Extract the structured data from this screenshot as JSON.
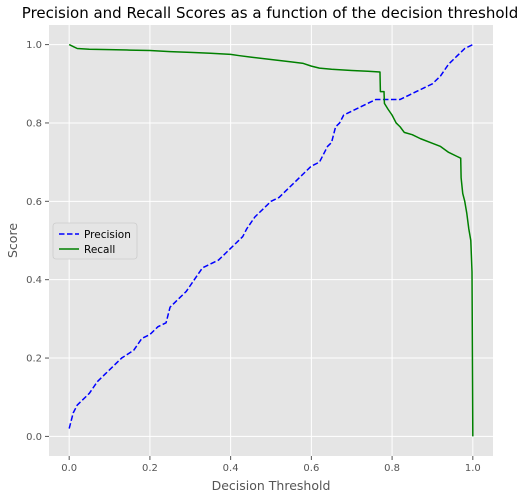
{
  "chart_data": {
    "type": "line",
    "title": "Precision and Recall Scores as a function of the decision threshold",
    "xlabel": "Decision Threshold",
    "ylabel": "Score",
    "xlim": [
      -0.05,
      1.05
    ],
    "ylim": [
      -0.05,
      1.05
    ],
    "xticks": [
      0.0,
      0.2,
      0.4,
      0.6,
      0.8,
      1.0
    ],
    "yticks": [
      0.0,
      0.2,
      0.4,
      0.6,
      0.8,
      1.0
    ],
    "xtick_labels": [
      "0.0",
      "0.2",
      "0.4",
      "0.6",
      "0.8",
      "1.0"
    ],
    "ytick_labels": [
      "0.0",
      "0.2",
      "0.4",
      "0.6",
      "0.8",
      "1.0"
    ],
    "grid": true,
    "legend_position": "center-left",
    "series": [
      {
        "name": "Precision",
        "color": "#0000ff",
        "dash": "dashed",
        "x": [
          0.0,
          0.01,
          0.02,
          0.03,
          0.05,
          0.07,
          0.09,
          0.11,
          0.13,
          0.16,
          0.18,
          0.2,
          0.22,
          0.24,
          0.25,
          0.27,
          0.29,
          0.31,
          0.33,
          0.35,
          0.37,
          0.39,
          0.41,
          0.43,
          0.44,
          0.46,
          0.48,
          0.5,
          0.52,
          0.54,
          0.56,
          0.58,
          0.6,
          0.62,
          0.63,
          0.64,
          0.65,
          0.66,
          0.67,
          0.68,
          0.7,
          0.72,
          0.74,
          0.76,
          0.78,
          0.8,
          0.82,
          0.84,
          0.86,
          0.88,
          0.9,
          0.92,
          0.94,
          0.96,
          0.98,
          1.0
        ],
        "y": [
          0.02,
          0.06,
          0.08,
          0.09,
          0.11,
          0.14,
          0.16,
          0.18,
          0.2,
          0.22,
          0.25,
          0.26,
          0.28,
          0.29,
          0.33,
          0.35,
          0.37,
          0.4,
          0.43,
          0.44,
          0.45,
          0.47,
          0.49,
          0.51,
          0.53,
          0.56,
          0.58,
          0.6,
          0.61,
          0.63,
          0.65,
          0.67,
          0.69,
          0.7,
          0.72,
          0.74,
          0.75,
          0.79,
          0.8,
          0.82,
          0.83,
          0.84,
          0.85,
          0.86,
          0.86,
          0.86,
          0.86,
          0.87,
          0.88,
          0.89,
          0.9,
          0.92,
          0.95,
          0.97,
          0.99,
          1.0
        ]
      },
      {
        "name": "Recall",
        "color": "#008000",
        "dash": "solid",
        "x": [
          0.0,
          0.01,
          0.02,
          0.05,
          0.1,
          0.15,
          0.2,
          0.25,
          0.3,
          0.35,
          0.4,
          0.42,
          0.45,
          0.5,
          0.55,
          0.58,
          0.6,
          0.62,
          0.65,
          0.7,
          0.74,
          0.77,
          0.771,
          0.78,
          0.781,
          0.79,
          0.8,
          0.81,
          0.82,
          0.83,
          0.85,
          0.87,
          0.9,
          0.92,
          0.94,
          0.96,
          0.97,
          0.971,
          0.975,
          0.98,
          0.985,
          0.99,
          0.995,
          0.998,
          1.0
        ],
        "y": [
          1.0,
          0.995,
          0.99,
          0.988,
          0.987,
          0.986,
          0.985,
          0.982,
          0.98,
          0.978,
          0.975,
          0.972,
          0.968,
          0.962,
          0.956,
          0.952,
          0.945,
          0.94,
          0.937,
          0.934,
          0.932,
          0.93,
          0.88,
          0.88,
          0.85,
          0.835,
          0.82,
          0.8,
          0.79,
          0.776,
          0.77,
          0.76,
          0.748,
          0.74,
          0.725,
          0.715,
          0.71,
          0.66,
          0.62,
          0.6,
          0.57,
          0.53,
          0.5,
          0.42,
          0.0
        ]
      }
    ]
  }
}
